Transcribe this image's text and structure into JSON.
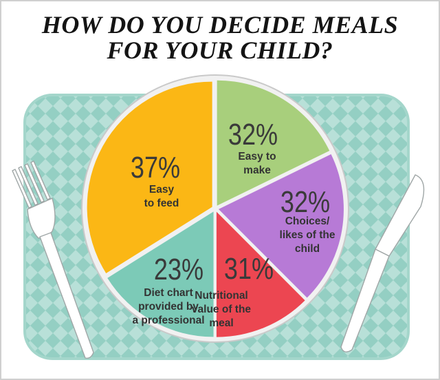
{
  "title_lines": [
    "HOW DO YOU DECIDE MEALS",
    "FOR YOUR CHILD?"
  ],
  "colors": {
    "placemat": "#b8e0d8",
    "placemat_check": "#94cfc3",
    "plate_rim": "#f1f1f1",
    "cutlery": "#ffffff"
  },
  "chart_data": {
    "type": "pie",
    "title": "HOW DO YOU DECIDE MEALS FOR YOUR CHILD?",
    "unit": "%",
    "slices": [
      {
        "value_label": "32%",
        "value": 32,
        "label_lines": [
          "Easy to",
          "make"
        ],
        "color": "#a8cf7c"
      },
      {
        "value_label": "32%",
        "value": 32,
        "label_lines": [
          "Choices/",
          "likes of the",
          "child"
        ],
        "color": "#b77ad6"
      },
      {
        "value_label": "31%",
        "value": 31,
        "label_lines": [
          "Nutritional",
          "value of the",
          "meal"
        ],
        "color": "#ec4651"
      },
      {
        "value_label": "23%",
        "value": 23,
        "label_lines": [
          "Diet chart",
          "provided by",
          "a professional"
        ],
        "color": "#7ccab7"
      },
      {
        "value_label": "37%",
        "value": 37,
        "label_lines": [
          "Easy",
          "to feed"
        ],
        "color": "#fbb715"
      }
    ]
  }
}
